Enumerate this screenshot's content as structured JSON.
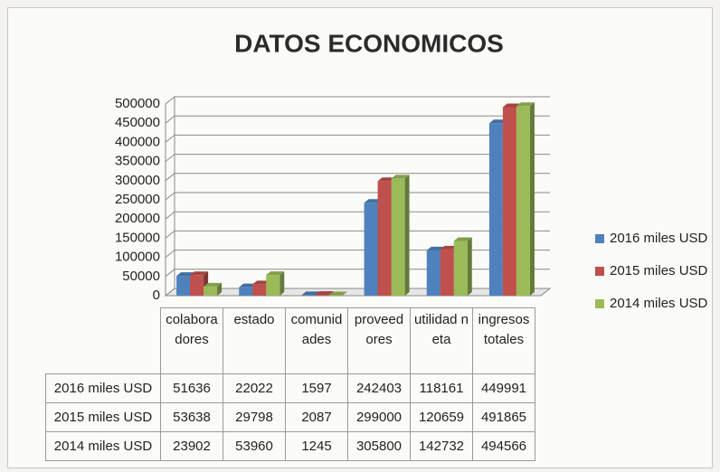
{
  "chart_data": {
    "type": "bar",
    "title": "DATOS ECONOMICOS",
    "categories": [
      "colaboradores",
      "estado",
      "comunidades",
      "proveedores",
      "utilidad neta",
      "ingresos totales"
    ],
    "series": [
      {
        "name": "2016 miles USD",
        "color": "#4f81bd",
        "values": [
          51636,
          22022,
          1597,
          242403,
          118161,
          449991
        ]
      },
      {
        "name": "2015 miles USD",
        "color": "#c0504d",
        "values": [
          53638,
          29798,
          2087,
          299000,
          120659,
          491865
        ]
      },
      {
        "name": "2014 miles USD",
        "color": "#9bbb59",
        "values": [
          23902,
          53960,
          1245,
          305800,
          142732,
          494566
        ]
      }
    ],
    "ylim": [
      0,
      500000
    ],
    "yticks": [
      0,
      50000,
      100000,
      150000,
      200000,
      250000,
      300000,
      350000,
      400000,
      450000,
      500000
    ],
    "grid": true,
    "legend": "right"
  }
}
